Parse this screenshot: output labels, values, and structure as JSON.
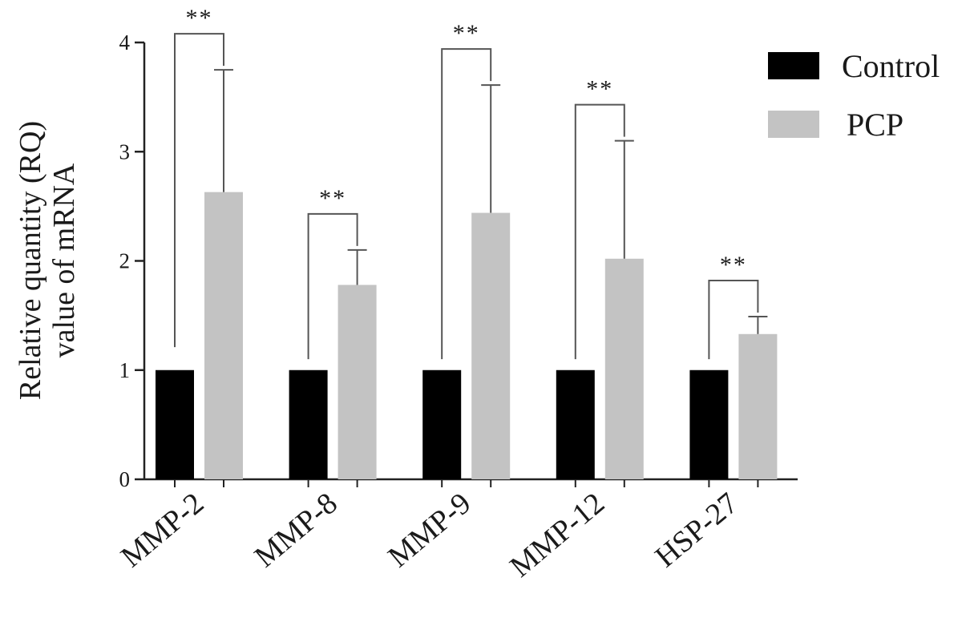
{
  "chart_data": {
    "type": "bar",
    "categories": [
      "MMP-2",
      "MMP-8",
      "MMP-9",
      "MMP-12",
      "HSP-27"
    ],
    "series": [
      {
        "name": "Control",
        "values": [
          1.0,
          1.0,
          1.0,
          1.0,
          1.0
        ],
        "error": [
          0,
          0,
          0,
          0,
          0
        ],
        "color": "#000000"
      },
      {
        "name": "PCP",
        "values": [
          2.63,
          1.78,
          2.44,
          2.02,
          1.33
        ],
        "error": [
          1.12,
          0.32,
          1.17,
          1.08,
          0.16
        ],
        "color": "#c3c3c3"
      }
    ],
    "ylabel": [
      "Relative quantity (RQ)",
      "value of mRNA"
    ],
    "xlabel": "",
    "ylim": [
      0,
      4
    ],
    "yticks": [
      0,
      1,
      2,
      3,
      4
    ],
    "significance": [
      "**",
      "**",
      "**",
      "**",
      "**"
    ],
    "legend_position": "top-right",
    "grid": false
  }
}
